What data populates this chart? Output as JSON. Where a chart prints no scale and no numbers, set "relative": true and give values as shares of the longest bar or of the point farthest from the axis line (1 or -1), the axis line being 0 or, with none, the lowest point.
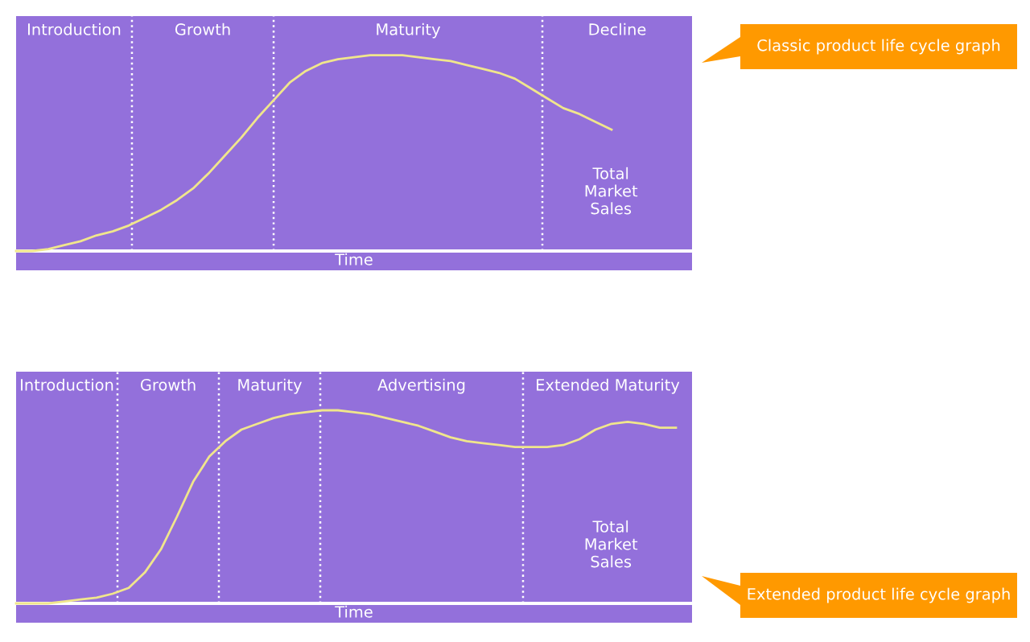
{
  "chart_data": [
    {
      "type": "line",
      "relative": true,
      "xlabel": "Time",
      "tick_labels": false,
      "color": "#f0e68c",
      "categories": [
        null,
        null,
        null,
        null,
        null,
        null,
        null,
        null,
        null,
        null,
        null,
        null,
        null,
        null,
        null,
        null,
        null,
        null,
        null,
        null,
        null,
        null,
        null,
        null,
        null,
        null,
        null,
        null,
        null,
        null,
        null,
        null,
        null,
        null,
        null,
        null,
        null,
        null,
        null,
        null,
        null,
        null,
        null
      ],
      "values": [
        0,
        0,
        0.01,
        0.03,
        0.05,
        0.08,
        0.1,
        0.13,
        0.17,
        0.21,
        0.26,
        0.32,
        0.4,
        0.49,
        0.58,
        0.68,
        0.77,
        0.86,
        0.92,
        0.96,
        0.98,
        0.99,
        1,
        1,
        1,
        0.99,
        0.98,
        0.97,
        0.95,
        0.93,
        0.91,
        0.88,
        0.83,
        0.78,
        0.73,
        0.7,
        0.66,
        0.62,
        null,
        null,
        null,
        null,
        null
      ],
      "annotations": [
        "Introduction",
        "Growth",
        "Maturity",
        "Decline",
        "Total\nMarket\nSales",
        "Classic product life cycle graph"
      ]
    },
    {
      "type": "line",
      "relative": true,
      "xlabel": "Time",
      "tick_labels": false,
      "color": "#f0e68c",
      "categories": [
        null,
        null,
        null,
        null,
        null,
        null,
        null,
        null,
        null,
        null,
        null,
        null,
        null,
        null,
        null,
        null,
        null,
        null,
        null,
        null,
        null,
        null,
        null,
        null,
        null,
        null,
        null,
        null,
        null,
        null,
        null,
        null,
        null,
        null,
        null,
        null,
        null,
        null,
        null,
        null,
        null,
        null,
        null
      ],
      "values": [
        0,
        0,
        0,
        0.01,
        0.02,
        0.03,
        0.05,
        0.08,
        0.16,
        0.28,
        0.45,
        0.63,
        0.76,
        0.84,
        0.9,
        0.93,
        0.96,
        0.98,
        0.99,
        1,
        1,
        0.99,
        0.98,
        0.96,
        0.94,
        0.92,
        0.89,
        0.86,
        0.84,
        0.83,
        0.82,
        0.81,
        0.81,
        0.81,
        0.82,
        0.85,
        0.9,
        0.93,
        0.94,
        0.93,
        0.91,
        0.91,
        null
      ],
      "annotations": [
        "Introduction",
        "Growth",
        "Maturity",
        "Advertising",
        "Extended Maturity",
        "Total\nMarket\nSales",
        "Extended product life cycle graph"
      ]
    }
  ]
}
